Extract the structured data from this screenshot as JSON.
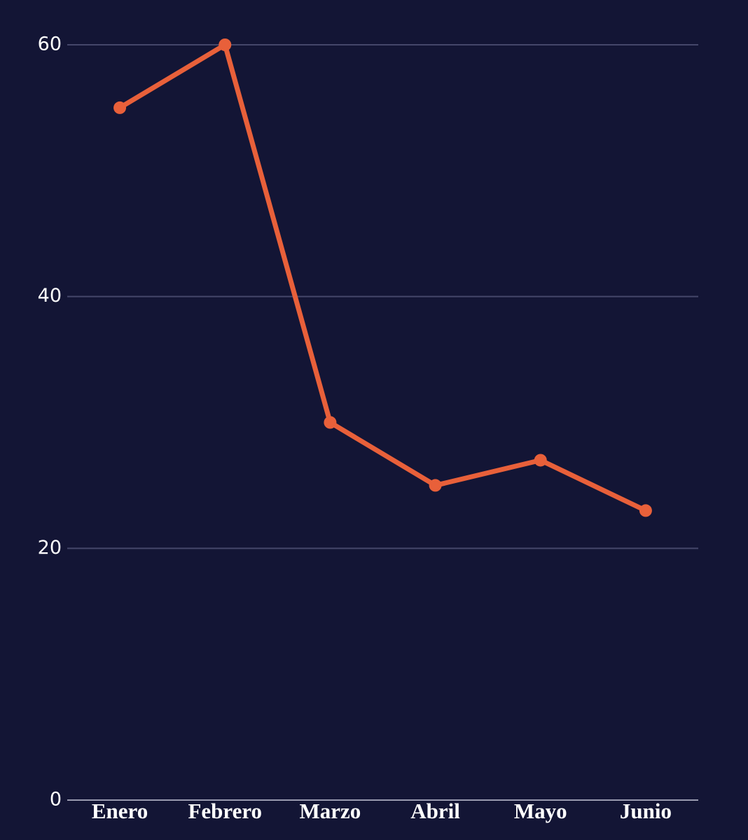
{
  "chart_data": {
    "type": "line",
    "categories": [
      "Enero",
      "Febrero",
      "Marzo",
      "Abril",
      "Mayo",
      "Junio"
    ],
    "values": [
      55,
      60,
      30,
      25,
      27,
      23
    ],
    "color": "#e8603a",
    "ylim": [
      0,
      60
    ],
    "yticks": [
      0,
      20,
      40,
      60
    ],
    "grid": true
  }
}
